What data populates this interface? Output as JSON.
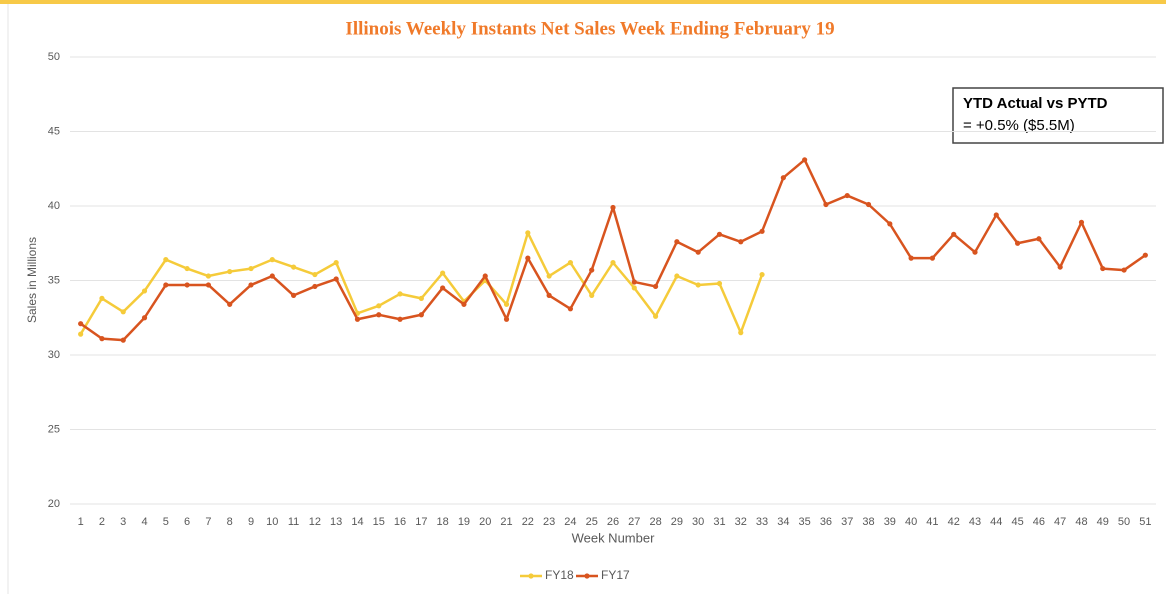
{
  "chart_data": {
    "type": "line",
    "title": "Illinois Weekly  Instants Net Sales Week Ending February  19",
    "x_label": "Week Number",
    "y_label": "Sales in Millions",
    "categories": [
      1,
      2,
      3,
      4,
      5,
      6,
      7,
      8,
      9,
      10,
      11,
      12,
      13,
      14,
      15,
      16,
      17,
      18,
      19,
      20,
      21,
      22,
      23,
      24,
      25,
      26,
      27,
      28,
      29,
      30,
      31,
      32,
      33,
      34,
      35,
      36,
      37,
      38,
      39,
      40,
      41,
      42,
      43,
      44,
      45,
      46,
      47,
      48,
      49,
      50,
      51
    ],
    "series": [
      {
        "name": "FY18",
        "color": "#f5cb3a",
        "values": [
          31.4,
          33.8,
          32.9,
          34.3,
          36.4,
          35.8,
          35.3,
          35.6,
          35.8,
          36.4,
          35.9,
          35.4,
          36.2,
          32.8,
          33.3,
          34.1,
          33.8,
          35.5,
          33.6,
          35.0,
          33.4,
          38.2,
          35.3,
          36.2,
          34.0,
          36.2,
          34.5,
          32.6,
          35.3,
          34.7,
          34.8,
          31.5,
          35.4,
          null,
          null,
          null,
          null,
          null,
          null,
          null,
          null,
          null,
          null,
          null,
          null,
          null,
          null,
          null,
          null,
          null,
          null
        ]
      },
      {
        "name": "FY17",
        "color": "#d8541f",
        "values": [
          32.1,
          31.1,
          31.0,
          32.5,
          34.7,
          34.7,
          34.7,
          33.4,
          34.7,
          35.3,
          34.0,
          34.6,
          35.1,
          32.4,
          32.7,
          32.4,
          32.7,
          34.5,
          33.4,
          35.3,
          32.4,
          36.5,
          34.0,
          33.1,
          35.7,
          39.9,
          34.9,
          34.6,
          37.6,
          36.9,
          38.1,
          37.6,
          38.3,
          41.9,
          43.1,
          40.1,
          40.7,
          40.1,
          38.8,
          36.5,
          36.5,
          38.1,
          36.9,
          39.4,
          37.5,
          37.8,
          35.9,
          38.9,
          35.8,
          35.7,
          36.7
        ]
      }
    ],
    "ylim": [
      20,
      50
    ],
    "yticks": [
      20,
      25,
      30,
      35,
      40,
      45,
      50
    ],
    "grid": true,
    "legend": "bottom",
    "annotation": {
      "title": "YTD Actual vs PYTD",
      "text": "= +0.5% ($5.5M)"
    }
  }
}
